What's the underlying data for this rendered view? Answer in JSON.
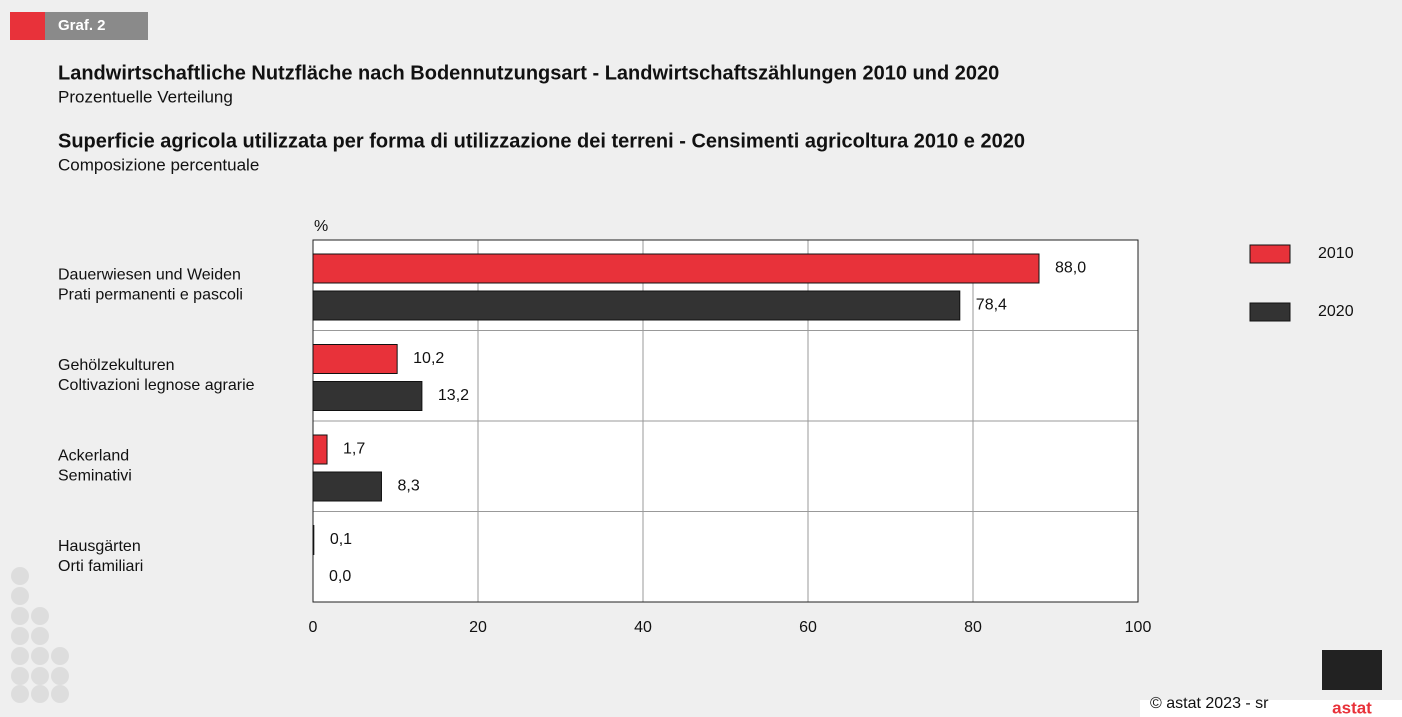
{
  "badge": "Graf. 2",
  "chart_data": {
    "type": "bar",
    "orientation": "horizontal",
    "title": "Landwirtschaftliche Nutzfläche nach Bodennutzungsart - Landwirtschaftszählungen 2010 und 2020",
    "subtitle": "Prozentuelle Verteilung",
    "title_it": "Superficie agricola utilizzata per forma di utilizzazione dei terreni - Censimenti agricoltura 2010 e 2020",
    "subtitle_it": "Composizione percentuale",
    "unit": "%",
    "categories": [
      [
        "Dauerwiesen und Weiden",
        "Prati permanenti e pascoli"
      ],
      [
        "Gehölzekulturen",
        "Coltivazioni legnose agrarie"
      ],
      [
        "Ackerland",
        "Seminativi"
      ],
      [
        "Hausgärten",
        "Orti familiari"
      ]
    ],
    "series": [
      {
        "name": "2010",
        "color": "#e8323a",
        "values": [
          88.0,
          10.2,
          1.7,
          0.1
        ],
        "value_labels": [
          "88,0",
          "10,2",
          "1,7",
          "0,1"
        ]
      },
      {
        "name": "2020",
        "color": "#333333",
        "values": [
          78.4,
          13.2,
          8.3,
          0.0
        ],
        "value_labels": [
          "78,4",
          "13,2",
          "8,3",
          "0,0"
        ]
      }
    ],
    "xlim": [
      0,
      100
    ],
    "xticks": [
      0,
      20,
      40,
      60,
      80,
      100
    ],
    "grid": true,
    "legend": "right"
  },
  "footer": "© astat 2023 - sr",
  "logo": "astat"
}
